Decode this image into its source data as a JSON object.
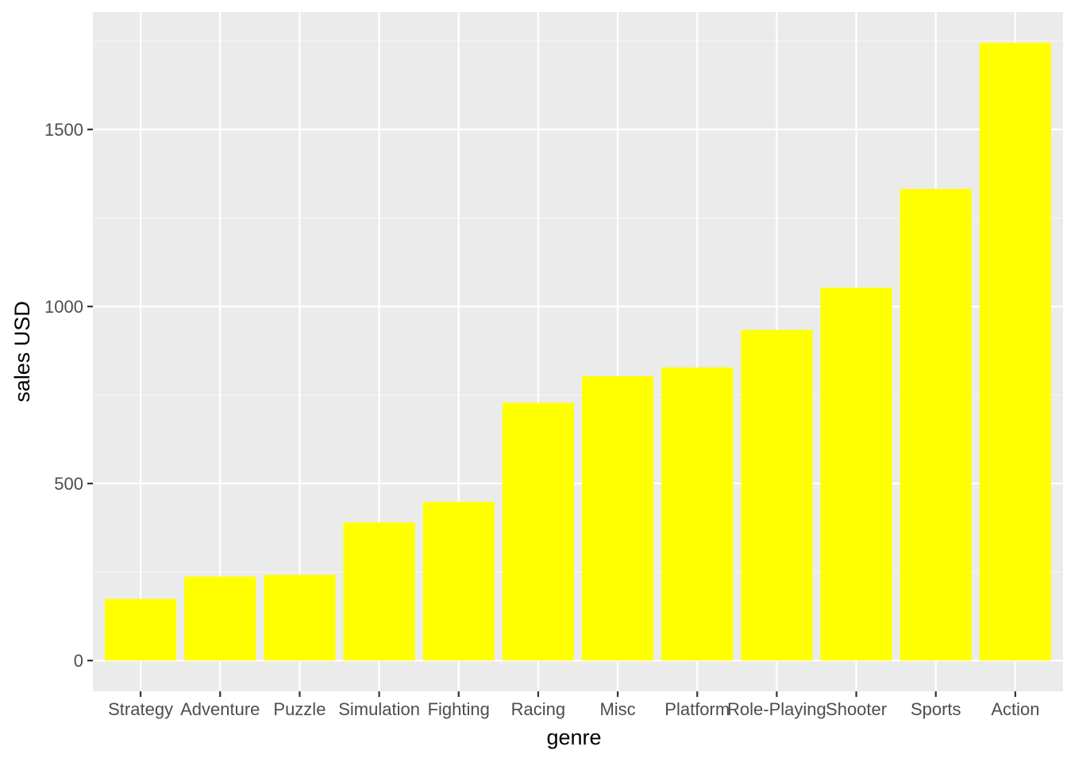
{
  "chart_data": {
    "type": "bar",
    "categories": [
      "Strategy",
      "Adventure",
      "Puzzle",
      "Simulation",
      "Fighting",
      "Racing",
      "Misc",
      "Platform",
      "Role-Playing",
      "Shooter",
      "Sports",
      "Action"
    ],
    "values": [
      174,
      237,
      242,
      390,
      448,
      728,
      803,
      828,
      934,
      1053,
      1332,
      1745
    ],
    "title": "",
    "xlabel": "genre",
    "ylabel": "sales USD",
    "ylim": [
      -87,
      1832
    ],
    "yticks": [
      0,
      500,
      1000,
      1500
    ],
    "ytick_labels": [
      "0",
      "500",
      "1000",
      "1500"
    ],
    "grid": true,
    "colors": {
      "bar": "#FFFF00",
      "panel": "#EBEBEB",
      "grid_major": "#FFFFFF",
      "grid_minor": "#F5F5F5",
      "tick": "#333333"
    }
  }
}
